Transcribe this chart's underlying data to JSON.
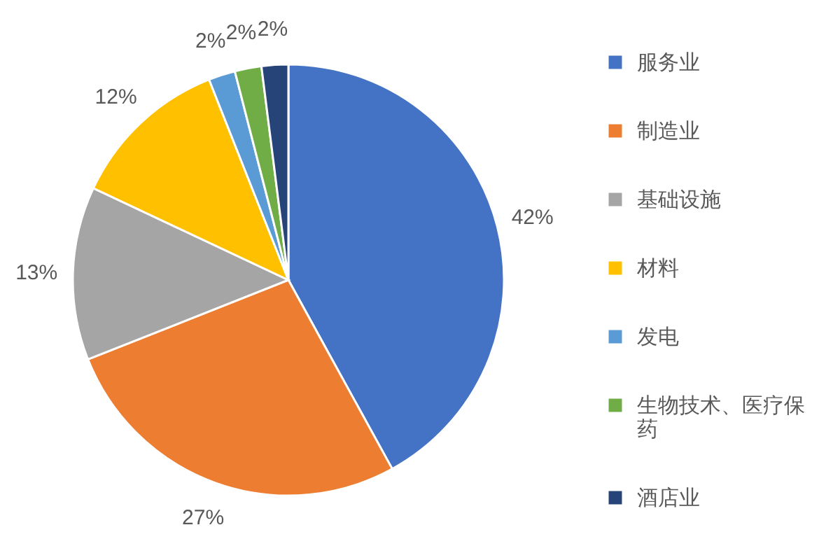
{
  "chart_data": {
    "type": "pie",
    "categories": [
      "服务业",
      "制造业",
      "基础设施",
      "材料",
      "发电",
      "生物技术、医疗保药",
      "酒店业"
    ],
    "values": [
      42,
      27,
      13,
      12,
      2,
      2,
      2
    ],
    "colors": [
      "#4472c4",
      "#ed7d31",
      "#a5a5a5",
      "#ffc000",
      "#5b9bd5",
      "#70ad47",
      "#264478"
    ],
    "value_labels": [
      "42%",
      "27%",
      "13%",
      "12%",
      "2%",
      "2%",
      "2%"
    ],
    "legend": "right"
  }
}
